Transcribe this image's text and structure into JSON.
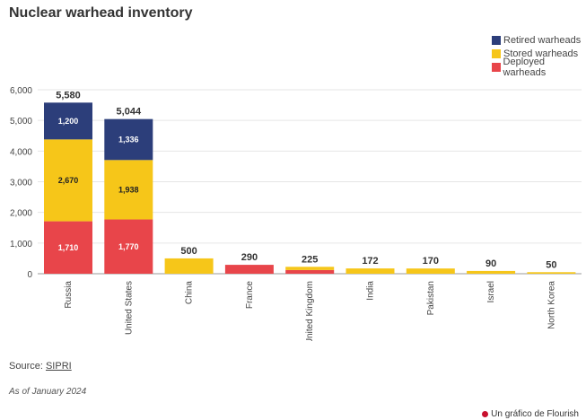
{
  "chart_data": {
    "type": "bar",
    "stacked": true,
    "title": "Nuclear warhead inventory",
    "categories": [
      "Russia",
      "United States",
      "China",
      "France",
      "United Kingdom",
      "India",
      "Pakistan",
      "Israel",
      "North Korea"
    ],
    "totals": [
      5580,
      5044,
      500,
      290,
      225,
      172,
      170,
      90,
      50
    ],
    "total_labels": [
      "5,580",
      "5,044",
      "500",
      "290",
      "225",
      "172",
      "170",
      "90",
      "50"
    ],
    "series": [
      {
        "name": "Deployed warheads",
        "color": "#e8454a",
        "values": [
          1710,
          1770,
          0,
          290,
          120,
          0,
          0,
          0,
          0
        ],
        "labels": [
          "1,710",
          "1,770",
          "",
          "",
          "",
          "",
          "",
          "",
          ""
        ]
      },
      {
        "name": "Stored warheads",
        "color": "#f6c619",
        "values": [
          2670,
          1938,
          500,
          0,
          105,
          172,
          170,
          90,
          50
        ],
        "labels": [
          "2,670",
          "1,938",
          "",
          "",
          "",
          "",
          "",
          "",
          ""
        ]
      },
      {
        "name": "Retired warheads",
        "color": "#2c3e7a",
        "values": [
          1200,
          1336,
          0,
          0,
          0,
          0,
          0,
          0,
          0
        ],
        "labels": [
          "1,200",
          "1,336",
          "",
          "",
          "",
          "",
          "",
          "",
          ""
        ]
      }
    ],
    "legend_order": [
      "Retired warheads",
      "Stored warheads",
      "Deployed warheads"
    ],
    "ylim": [
      0,
      6000
    ],
    "yticks": [
      0,
      1000,
      2000,
      3000,
      4000,
      5000,
      6000
    ],
    "ytick_labels": [
      "0",
      "1,000",
      "2,000",
      "3,000",
      "4,000",
      "5,000",
      "6,000"
    ],
    "grid": true,
    "legend_position": "top-right"
  },
  "footer": {
    "source_prefix": "Source: ",
    "source_link": "SIPRI",
    "note": "As of January 2024",
    "credit": "Un gráfico de Flourish"
  }
}
